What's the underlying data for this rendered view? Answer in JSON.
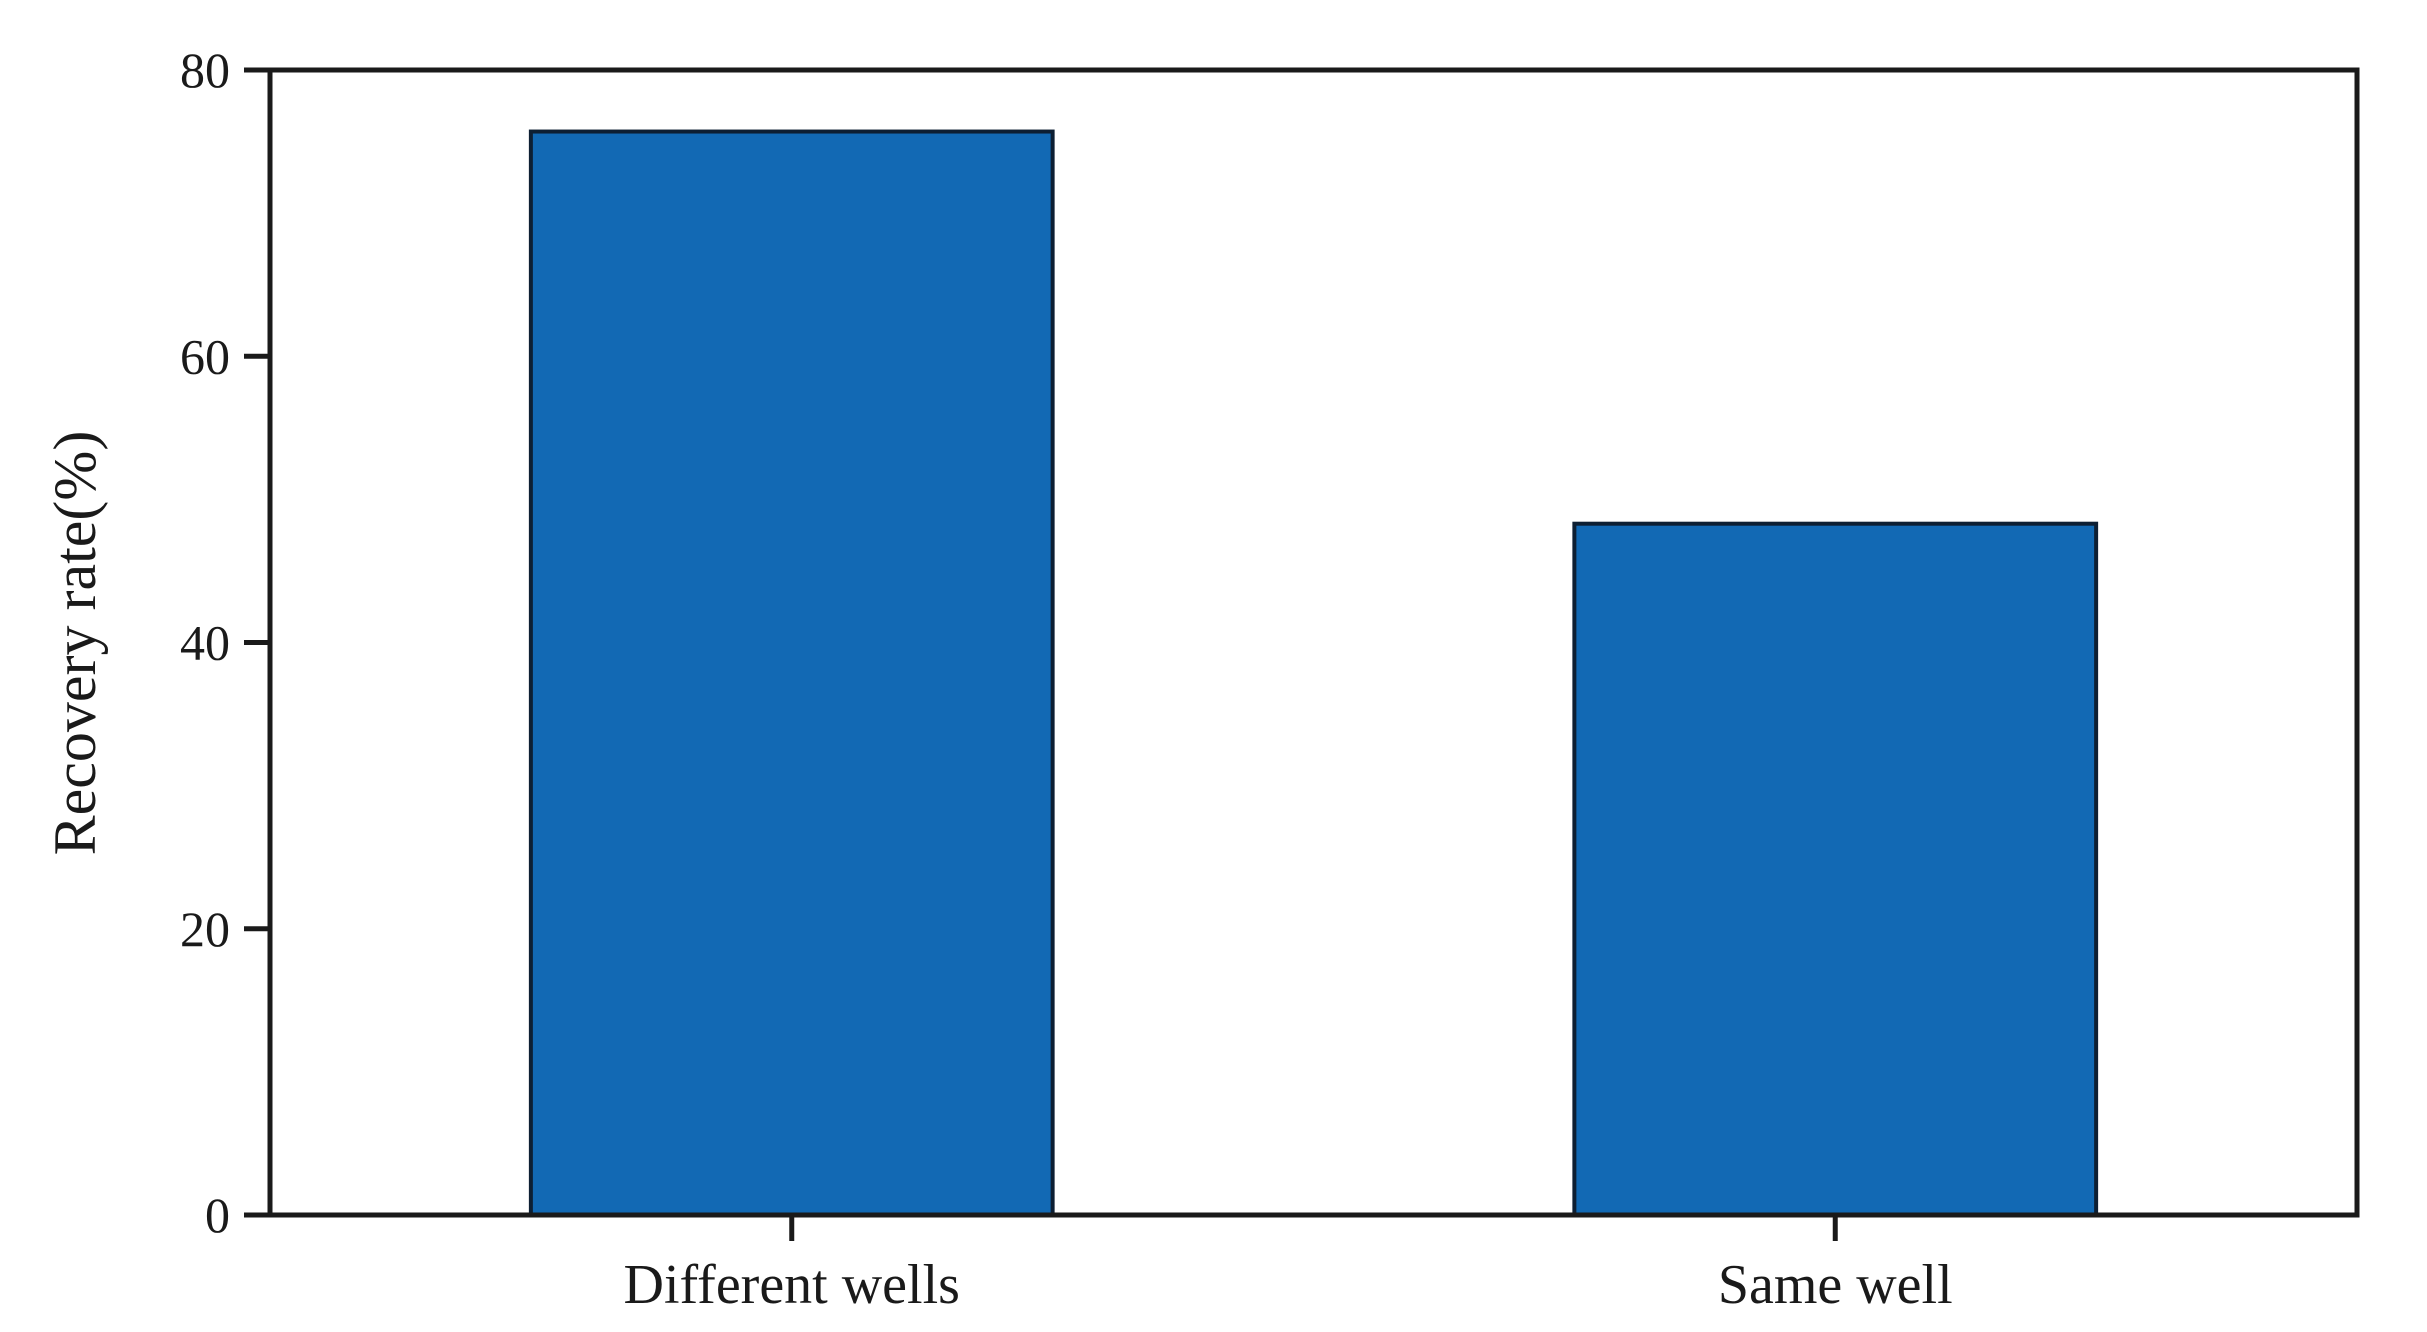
{
  "chart_data": {
    "type": "bar",
    "categories": [
      "Different wells",
      "Same well"
    ],
    "values": [
      75.7,
      48.3
    ],
    "title": "",
    "xlabel": "",
    "ylabel": "Recovery rate(%)",
    "ylim": [
      0,
      80
    ],
    "yticks": [
      0,
      20,
      40,
      60,
      80
    ],
    "legend": "none",
    "grid": false,
    "bar_color": "#1269b4",
    "bar_edge_color": "#0d1f33",
    "axis_color": "#1a1a1a",
    "background_color": "#ffffff"
  }
}
